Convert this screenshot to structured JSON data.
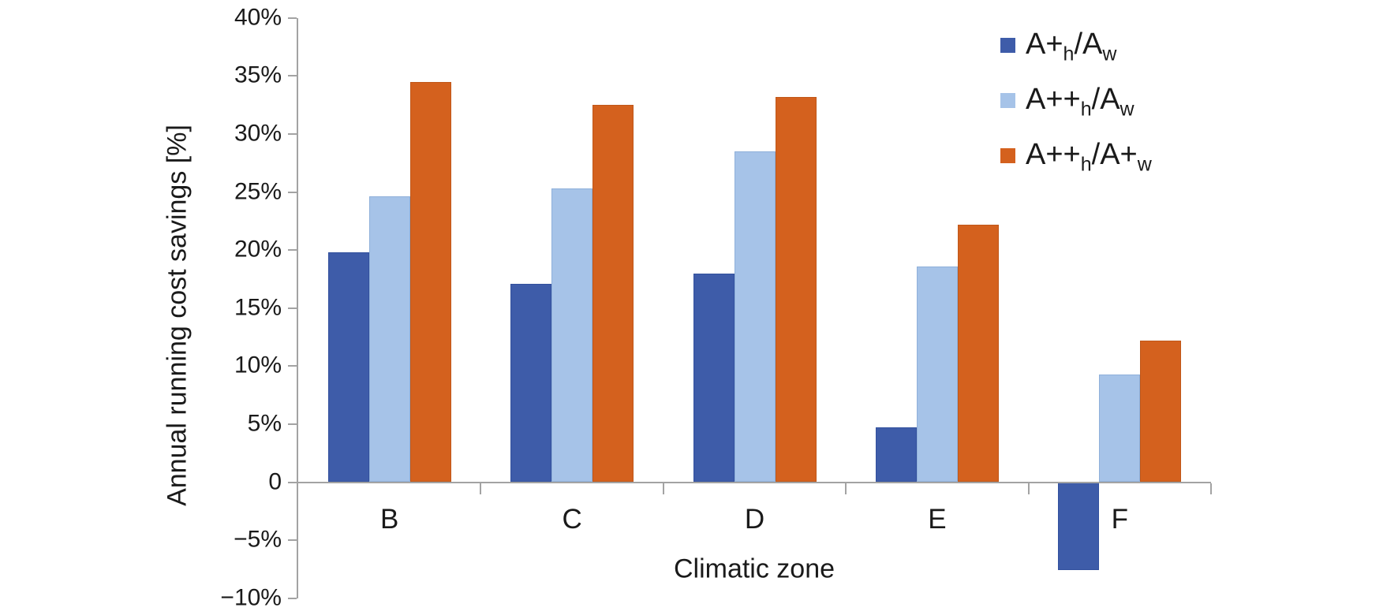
{
  "chart_data": {
    "type": "bar",
    "title": "",
    "xlabel": "Climatic zone",
    "ylabel": "Annual running cost savings [%]",
    "categories": [
      "B",
      "C",
      "D",
      "E",
      "F"
    ],
    "series": [
      {
        "name": "A+h/Aw",
        "color": "#3E5CA9",
        "edge_color": "#33519E",
        "values": [
          19.8,
          17.1,
          18.0,
          4.7,
          -7.6
        ],
        "label_parts": [
          {
            "text": "A+",
            "sub": false
          },
          {
            "text": "h",
            "sub": true
          },
          {
            "text": "/A",
            "sub": false
          },
          {
            "text": "w",
            "sub": true
          }
        ]
      },
      {
        "name": "A++h/Aw",
        "color": "#A6C3E8",
        "edge_color": "#8FB0DA",
        "values": [
          24.6,
          25.3,
          28.5,
          18.6,
          9.3
        ],
        "label_parts": [
          {
            "text": "A++",
            "sub": false
          },
          {
            "text": "h",
            "sub": true
          },
          {
            "text": "/A",
            "sub": false
          },
          {
            "text": "w",
            "sub": true
          }
        ]
      },
      {
        "name": "A++h/A+w",
        "color": "#D4611E",
        "edge_color": "#C05719",
        "values": [
          34.5,
          32.5,
          33.2,
          22.2,
          12.2
        ],
        "label_parts": [
          {
            "text": "A++",
            "sub": false
          },
          {
            "text": "h",
            "sub": true
          },
          {
            "text": "/A+",
            "sub": false
          },
          {
            "text": "w",
            "sub": true
          }
        ]
      }
    ],
    "yticks": [
      40,
      35,
      30,
      25,
      20,
      15,
      10,
      5,
      0,
      -5,
      -10
    ],
    "ytick_labels": [
      "40%",
      "35%",
      "30%",
      "25%",
      "20%",
      "15%",
      "10%",
      "5%",
      "0",
      "−5%",
      "−10%"
    ],
    "ylim": [
      -10,
      40
    ],
    "grid": false,
    "legend_position": "top-right",
    "axis_color": "#A3A3A3",
    "text_color": "#1A1A1A",
    "background_color": "#FFFFFF"
  }
}
